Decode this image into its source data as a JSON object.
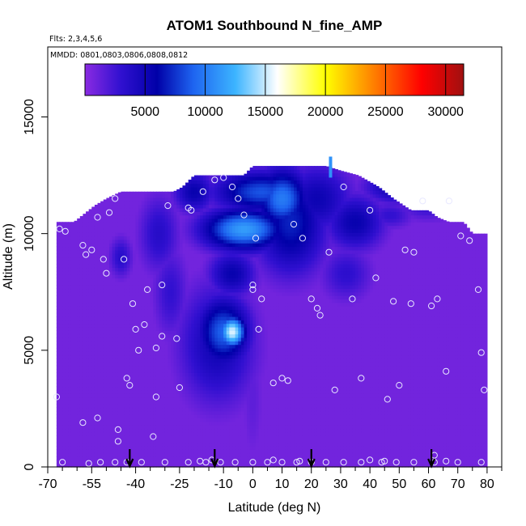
{
  "chart_data": {
    "type": "heatmap",
    "title": "ATOM1 Southbound N_fine_AMP",
    "subtitle_flights": "Flts: 2,3,4,5,6",
    "subtitle_dates": "MMDD: 0801,0803,0806,0808,0812",
    "xlabel": "Latitude (deg N)",
    "ylabel": "Altitude (m)",
    "xlim": [
      -70,
      85
    ],
    "ylim": [
      0,
      18000
    ],
    "x_ticks": [
      -70,
      -55,
      -40,
      -25,
      -10,
      0,
      10,
      20,
      30,
      40,
      50,
      60,
      70,
      80
    ],
    "x_tick_labels": [
      "-70",
      "-55",
      "-40",
      "-25",
      "-10",
      "0",
      "10",
      "20",
      "30",
      "40",
      "50",
      "60",
      "70",
      "80"
    ],
    "x_minor_ticks": [
      -65,
      -60,
      -50,
      -45,
      -35,
      -30,
      -20,
      -15,
      -5,
      5,
      15,
      25,
      35,
      45,
      55,
      65,
      75,
      85
    ],
    "y_ticks": [
      0,
      5000,
      10000,
      15000
    ],
    "y_tick_labels": [
      "0",
      "5000",
      "10000",
      "15000"
    ],
    "colorbar": {
      "min": 0,
      "max": 31500,
      "ticks": [
        5000,
        10000,
        15000,
        20000,
        25000,
        30000
      ],
      "tick_labels": [
        "5000",
        "10000",
        "15000",
        "20000",
        "25000",
        "30000"
      ],
      "stops": [
        {
          "v": 0,
          "c": "#8A2BE2"
        },
        {
          "v": 3000,
          "c": "#3010D0"
        },
        {
          "v": 6000,
          "c": "#0000A8"
        },
        {
          "v": 9000,
          "c": "#1E64F0"
        },
        {
          "v": 12500,
          "c": "#3CB4FF"
        },
        {
          "v": 16000,
          "c": "#FFFFFF"
        },
        {
          "v": 20000,
          "c": "#FFFF00"
        },
        {
          "v": 24000,
          "c": "#FF8000"
        },
        {
          "v": 28000,
          "c": "#FF0000"
        },
        {
          "v": 31500,
          "c": "#A01010"
        }
      ]
    },
    "coverage_profile": {
      "lat": [
        -67,
        -61,
        -54,
        -50,
        -45,
        -40,
        -33,
        -27,
        -24,
        -20,
        -16,
        -10,
        -6,
        -3,
        0,
        6,
        12,
        20,
        25,
        30,
        36,
        43,
        48,
        54,
        60,
        63,
        67,
        72,
        75,
        78,
        80
      ],
      "top_alt": [
        10500,
        10500,
        11200,
        11500,
        11800,
        11800,
        11800,
        11800,
        12000,
        12500,
        12500,
        12500,
        12500,
        12500,
        12900,
        12900,
        12900,
        12900,
        12900,
        12700,
        12500,
        12000,
        11500,
        11000,
        11000,
        10700,
        10500,
        10500,
        10000,
        10000,
        10000
      ]
    },
    "features": [
      {
        "lat": -7,
        "alt": 5800,
        "value": 15500,
        "slat": 4.5,
        "salt": 700
      },
      {
        "lat": -10,
        "alt": 5800,
        "value": 9000,
        "slat": 9,
        "salt": 1500
      },
      {
        "lat": -12,
        "alt": 5300,
        "value": 5000,
        "slat": 13,
        "salt": 2600
      },
      {
        "lat": -7,
        "alt": 8300,
        "value": 5500,
        "slat": 8,
        "salt": 1000
      },
      {
        "lat": -3,
        "alt": 10200,
        "value": 11500,
        "slat": 14,
        "salt": 900
      },
      {
        "lat": 10,
        "alt": 11500,
        "value": 10000,
        "slat": 9,
        "salt": 1300
      },
      {
        "lat": 13,
        "alt": 10500,
        "value": 7000,
        "slat": 12,
        "salt": 2200
      },
      {
        "lat": 3,
        "alt": 11800,
        "value": 8500,
        "slat": 16,
        "salt": 900
      },
      {
        "lat": 22,
        "alt": 11500,
        "value": 5200,
        "slat": 12,
        "salt": 1500
      },
      {
        "lat": 35,
        "alt": 10500,
        "value": 5500,
        "slat": 10,
        "salt": 1200
      },
      {
        "lat": 32,
        "alt": 8300,
        "value": 3200,
        "slat": 9,
        "salt": 1200
      },
      {
        "lat": 50,
        "alt": 12000,
        "value": 5500,
        "slat": 12,
        "salt": 700
      },
      {
        "lat": 60,
        "alt": 11400,
        "value": 3500,
        "slat": 11,
        "salt": 800
      },
      {
        "lat": -20,
        "alt": 11800,
        "value": 5500,
        "slat": 7,
        "salt": 900
      },
      {
        "lat": -32,
        "alt": 10000,
        "value": 3600,
        "slat": 7,
        "salt": 1700
      },
      {
        "lat": -28,
        "alt": 7500,
        "value": 3000,
        "slat": 6,
        "salt": 2000
      },
      {
        "lat": -45,
        "alt": 9000,
        "value": 3500,
        "slat": 4,
        "salt": 900
      },
      {
        "lat": -20,
        "alt": 3500,
        "value": 1800,
        "slat": 5,
        "salt": 1000
      },
      {
        "lat": 0,
        "alt": 3000,
        "value": 1500,
        "slat": 4,
        "salt": 3000
      },
      {
        "lat": 47,
        "alt": 10800,
        "value": 3000,
        "slat": 8,
        "salt": 600
      }
    ],
    "sample_points": {
      "lat": [
        -67,
        -66,
        -64,
        -58,
        -55,
        -57,
        -51,
        -50,
        -53,
        -46,
        -43,
        -42,
        -41,
        -40,
        -39,
        -36,
        -33,
        -34,
        -31,
        -26,
        -25,
        -29,
        -22,
        -21,
        -17,
        -13,
        -10,
        -7,
        -5,
        -3,
        0,
        0,
        1,
        3,
        2,
        7,
        10,
        12,
        14,
        17,
        20,
        22,
        23,
        26,
        28,
        31,
        34,
        37,
        40,
        42,
        46,
        48,
        50,
        52,
        54,
        55,
        58,
        61,
        63,
        66,
        67,
        71,
        74,
        77,
        78,
        79,
        -65,
        -56,
        -52,
        -47,
        -43,
        -38,
        -30,
        -22,
        -16,
        -11,
        -6,
        0,
        5,
        10,
        15,
        20,
        25,
        31,
        37,
        44,
        49,
        55,
        62,
        70,
        78,
        -47,
        -53,
        -49,
        -58,
        -46,
        -37,
        -31,
        -33,
        -44,
        -18,
        -14,
        7,
        16,
        40,
        45,
        66,
        62
      ],
      "alt": [
        3000,
        10200,
        10100,
        9500,
        9300,
        9100,
        8900,
        8300,
        2100,
        1600,
        3800,
        3500,
        7000,
        5900,
        5000,
        7600,
        3000,
        1300,
        7800,
        5500,
        3400,
        11200,
        11100,
        11000,
        11800,
        12300,
        12400,
        12000,
        11500,
        10800,
        7800,
        7600,
        9800,
        7200,
        5900,
        3600,
        3800,
        3700,
        10400,
        9800,
        7200,
        6800,
        6500,
        9200,
        3300,
        12000,
        7200,
        3800,
        11000,
        8100,
        2900,
        7100,
        3500,
        9300,
        7000,
        9200,
        11400,
        6900,
        7200,
        4100,
        11400,
        9900,
        9700,
        7600,
        4900,
        3300,
        200,
        150,
        200,
        200,
        200,
        200,
        200,
        200,
        200,
        200,
        200,
        200,
        200,
        200,
        200,
        200,
        200,
        200,
        200,
        200,
        200,
        200,
        200,
        200,
        200,
        11500,
        10700,
        10900,
        1900,
        1100,
        6100,
        5600,
        5100,
        8900,
        250,
        300,
        300,
        250,
        300,
        250,
        250,
        500
      ],
      "bar_lat": 26,
      "bar_alt_range": [
        12400,
        13300
      ],
      "bar_value": 11000
    },
    "flight_arrows_lat": [
      -42,
      -13,
      20,
      61
    ]
  }
}
